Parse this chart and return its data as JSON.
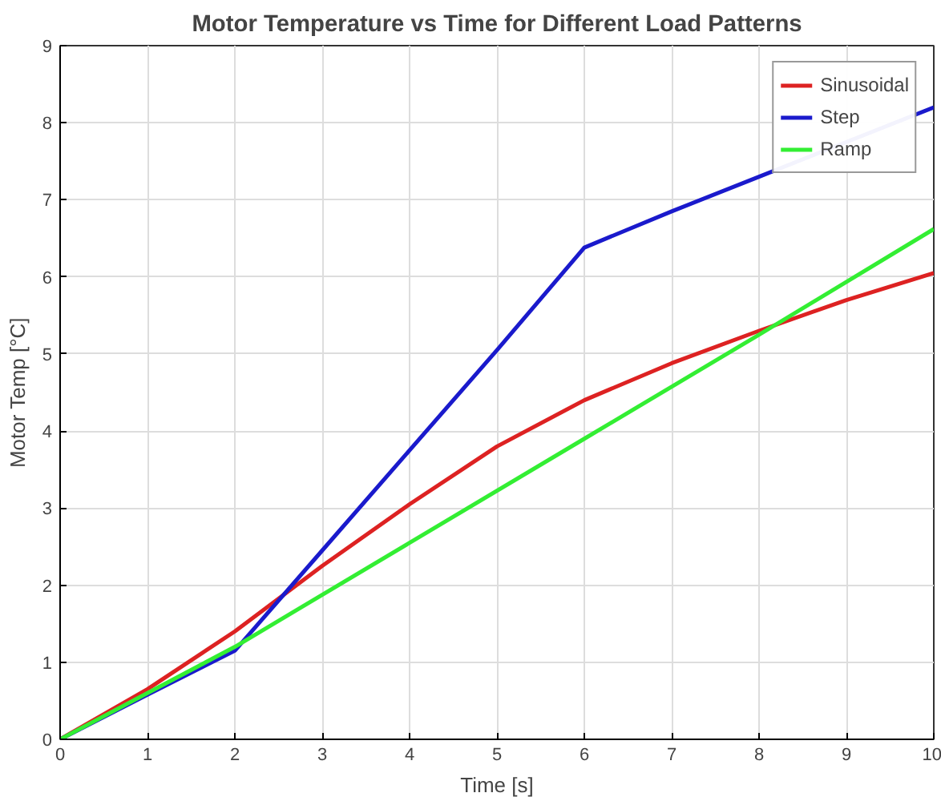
{
  "chart_data": {
    "type": "line",
    "title": "Motor Temperature vs Time for Different Load Patterns",
    "xlabel": "Time [s]",
    "ylabel": "Motor Temp [°C]",
    "series": [
      {
        "name": "Sinusoidal",
        "color": "#dd2222",
        "x": [
          0,
          1,
          2,
          3,
          4,
          5,
          6,
          7,
          8,
          9,
          10
        ],
        "values": [
          0,
          0.65,
          1.4,
          2.25,
          3.05,
          3.8,
          4.4,
          4.88,
          5.3,
          5.7,
          6.05
        ]
      },
      {
        "name": "Step",
        "color": "#1a1acc",
        "x": [
          0,
          1,
          2,
          3,
          4,
          5,
          6,
          7,
          8,
          10
        ],
        "values": [
          0,
          0.58,
          1.15,
          2.45,
          3.75,
          5.05,
          6.38,
          6.85,
          7.3,
          8.2
        ]
      },
      {
        "name": "Ramp",
        "color": "#33ee33",
        "x": [
          0,
          1,
          2,
          4,
          6,
          8,
          10
        ],
        "values": [
          0,
          0.6,
          1.2,
          2.55,
          3.9,
          5.25,
          6.62
        ]
      }
    ],
    "xlim": [
      0,
      10
    ],
    "ylim": [
      0,
      9
    ],
    "xticks": [
      0,
      1,
      2,
      3,
      4,
      5,
      6,
      7,
      8,
      9,
      10
    ],
    "yticks": [
      0,
      1,
      2,
      3,
      4,
      5,
      6,
      7,
      8,
      9
    ],
    "grid": true,
    "legend": "top right",
    "marker": "none",
    "line_style": "solid"
  }
}
